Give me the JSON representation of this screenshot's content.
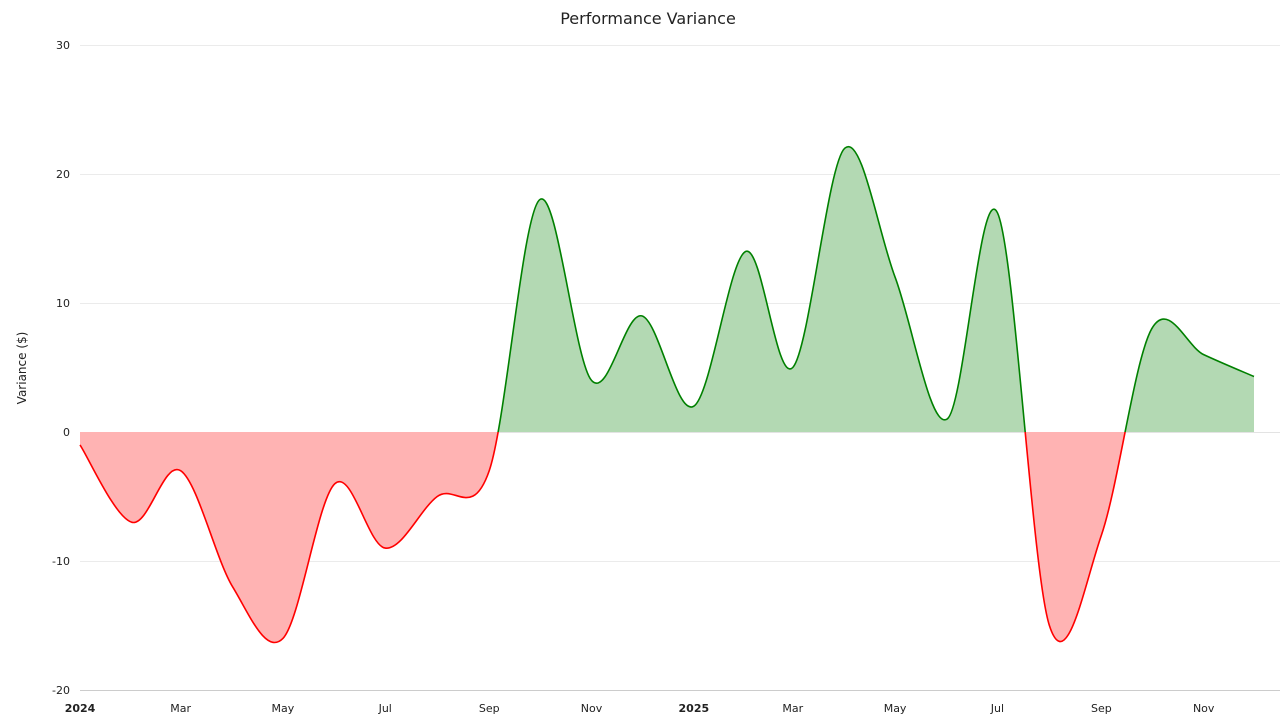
{
  "chart_data": {
    "type": "area",
    "title": "Performance Variance",
    "xlabel": "",
    "ylabel": "Variance ($)",
    "ylim": [
      -20,
      30
    ],
    "yticks": [
      -20,
      -10,
      0,
      10,
      20,
      30
    ],
    "xlim": [
      "2024-01-01",
      "2025-12-01"
    ],
    "xticks": [
      {
        "date": "2024-01-01",
        "label": "2024",
        "year": true
      },
      {
        "date": "2024-03-01",
        "label": "Mar",
        "year": false
      },
      {
        "date": "2024-05-01",
        "label": "May",
        "year": false
      },
      {
        "date": "2024-07-01",
        "label": "Jul",
        "year": false
      },
      {
        "date": "2024-09-01",
        "label": "Sep",
        "year": false
      },
      {
        "date": "2024-11-01",
        "label": "Nov",
        "year": false
      },
      {
        "date": "2025-01-01",
        "label": "2025",
        "year": true
      },
      {
        "date": "2025-03-01",
        "label": "Mar",
        "year": false
      },
      {
        "date": "2025-05-01",
        "label": "May",
        "year": false
      },
      {
        "date": "2025-07-01",
        "label": "Jul",
        "year": false
      },
      {
        "date": "2025-09-01",
        "label": "Sep",
        "year": false
      },
      {
        "date": "2025-11-01",
        "label": "Nov",
        "year": false
      }
    ],
    "grid": true,
    "positive_color": "#008000",
    "positive_fill": "#b3d9b3",
    "negative_color": "#ff0000",
    "negative_fill": "#ffb3b3",
    "series": [
      {
        "x": [
          "2024-01-01",
          "2024-02-01",
          "2024-03-01",
          "2024-04-01",
          "2024-05-01",
          "2024-06-01",
          "2024-07-01",
          "2024-08-01",
          "2024-09-01",
          "2024-10-01",
          "2024-11-01",
          "2024-12-01",
          "2025-01-01",
          "2025-02-01",
          "2025-03-01",
          "2025-04-01",
          "2025-05-01",
          "2025-06-01",
          "2025-07-01",
          "2025-08-01",
          "2025-09-01",
          "2025-10-01",
          "2025-11-01",
          "2025-12-01"
        ],
        "y": [
          -1,
          -7,
          -3,
          -12,
          -16,
          -4,
          -9,
          -5,
          -3,
          18,
          4,
          9,
          2,
          14,
          5,
          22,
          12,
          1,
          17,
          -15,
          -8,
          8,
          6,
          4.3
        ]
      }
    ]
  }
}
